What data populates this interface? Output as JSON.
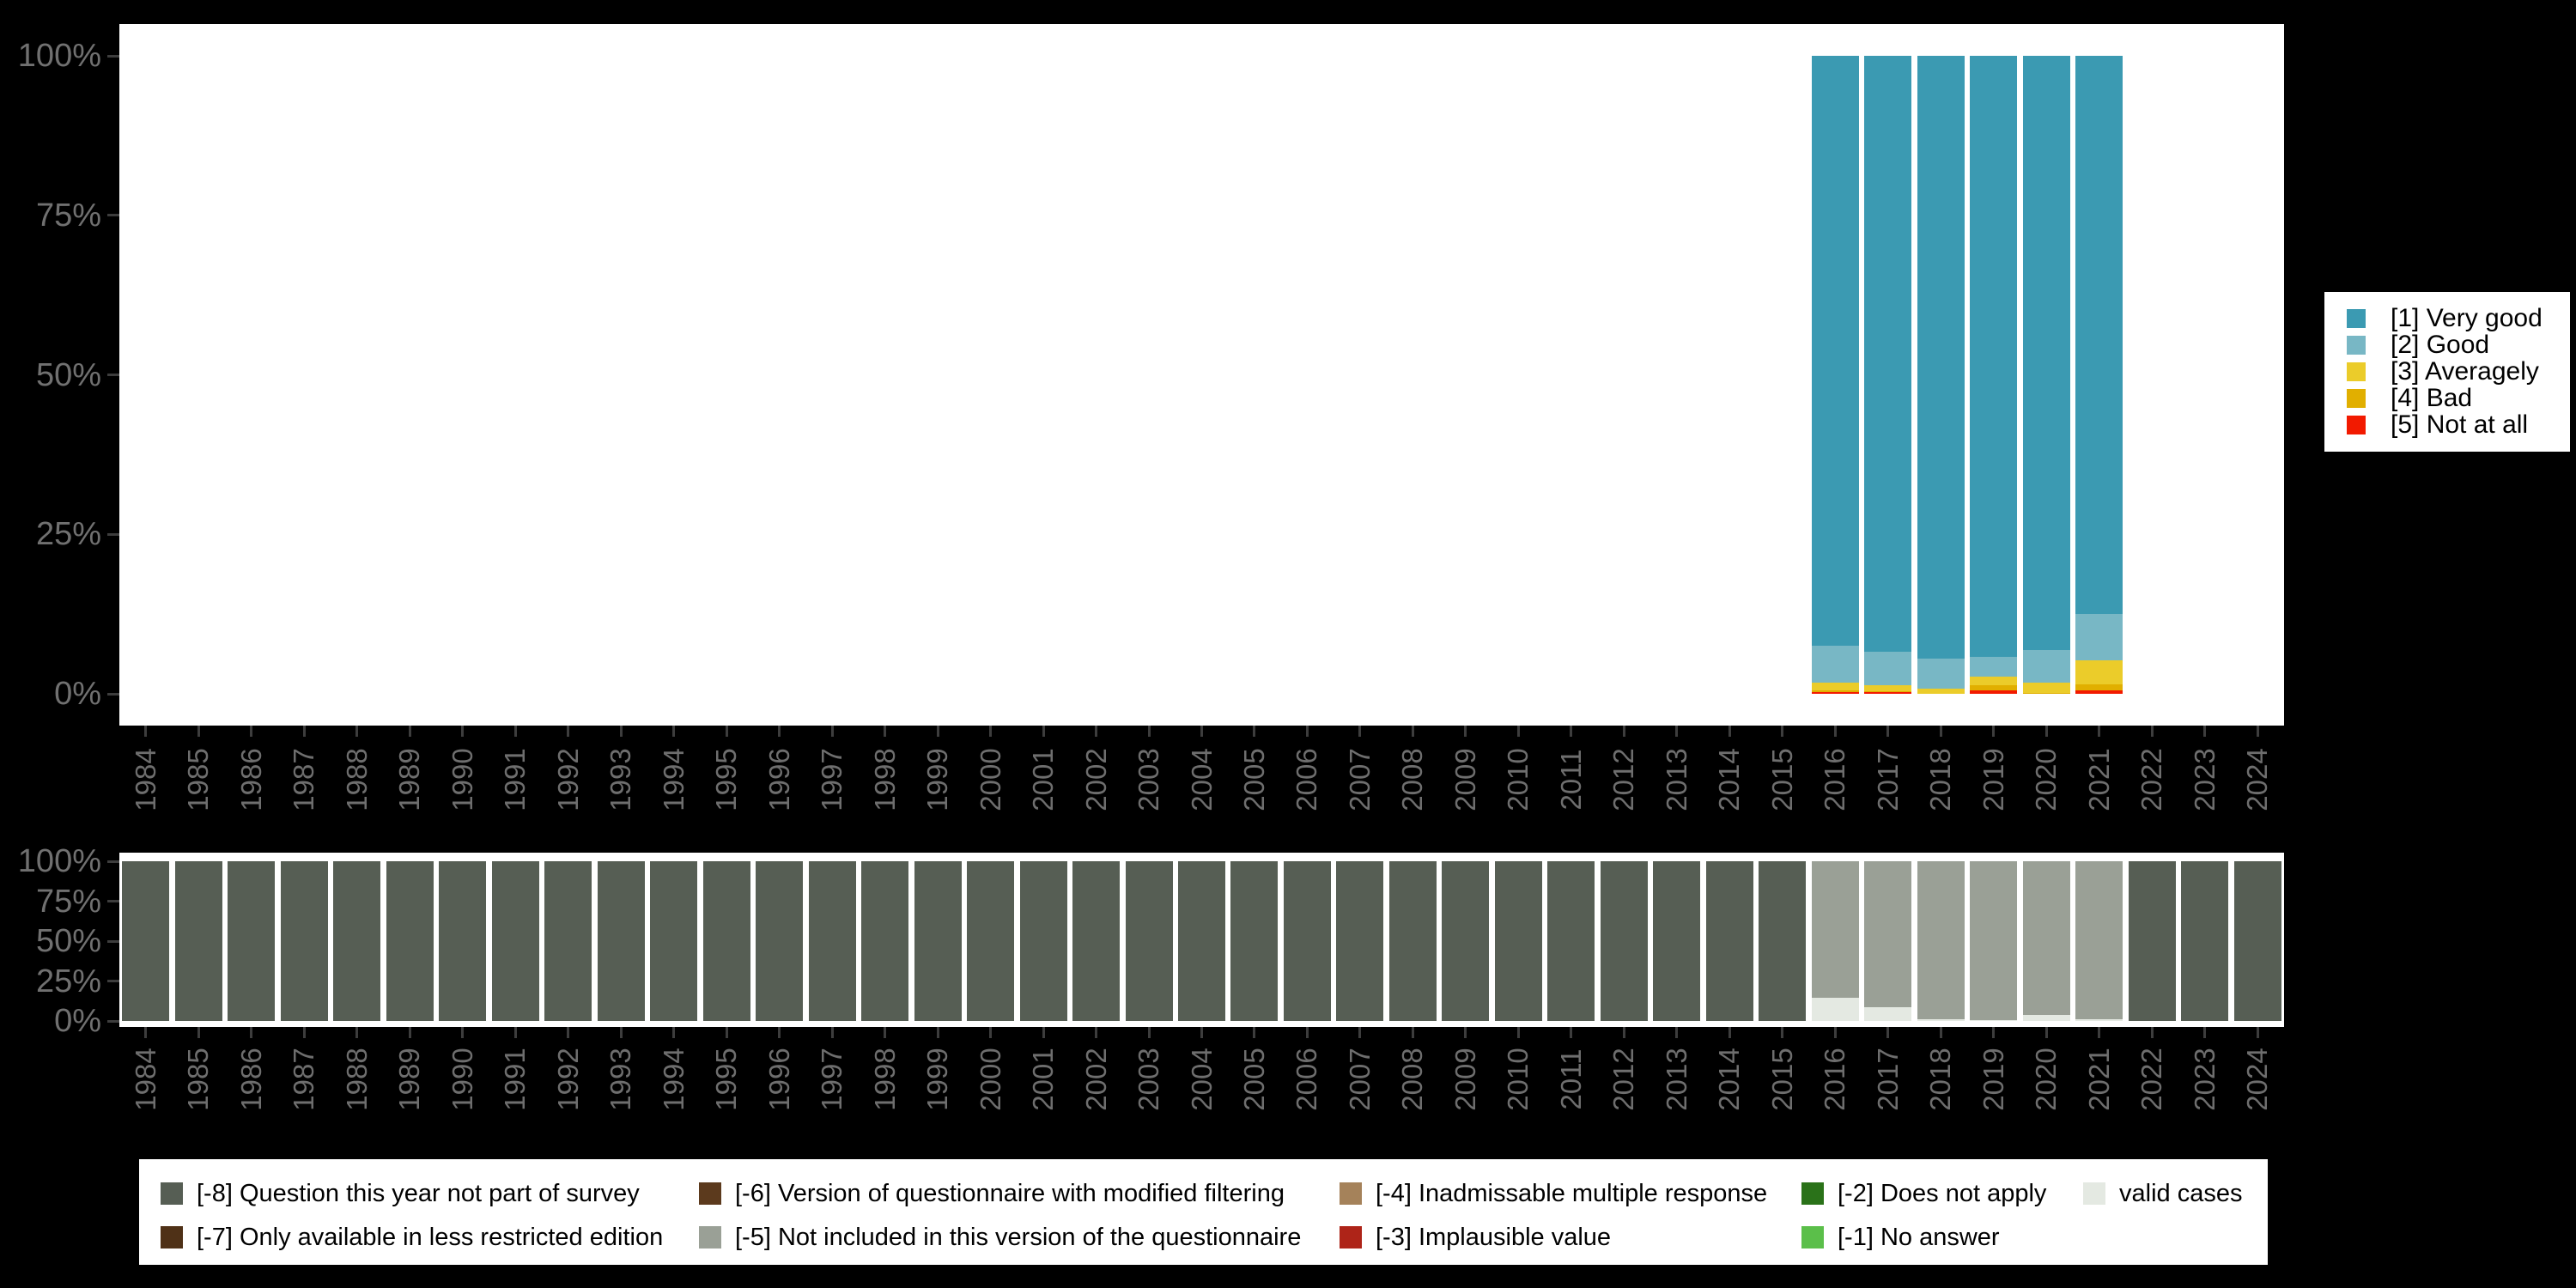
{
  "background_color": "#000000",
  "years": [
    "1984",
    "1985",
    "1986",
    "1987",
    "1988",
    "1989",
    "1990",
    "1991",
    "1992",
    "1993",
    "1994",
    "1995",
    "1996",
    "1997",
    "1998",
    "1999",
    "2000",
    "2001",
    "2002",
    "2003",
    "2004",
    "2005",
    "2006",
    "2007",
    "2008",
    "2009",
    "2010",
    "2011",
    "2012",
    "2013",
    "2014",
    "2015",
    "2016",
    "2017",
    "2018",
    "2019",
    "2020",
    "2021",
    "2022",
    "2023",
    "2024"
  ],
  "chart_data": [
    {
      "type": "bar",
      "stacked": true,
      "percent": true,
      "title": "",
      "xlabel": "",
      "ylabel": "",
      "ylim": [
        0,
        100
      ],
      "yticks": [
        "0%",
        "25%",
        "50%",
        "75%",
        "100%"
      ],
      "grid": false,
      "legend_position": "right",
      "x": [
        "1984",
        "1985",
        "1986",
        "1987",
        "1988",
        "1989",
        "1990",
        "1991",
        "1992",
        "1993",
        "1994",
        "1995",
        "1996",
        "1997",
        "1998",
        "1999",
        "2000",
        "2001",
        "2002",
        "2003",
        "2004",
        "2005",
        "2006",
        "2007",
        "2008",
        "2009",
        "2010",
        "2011",
        "2012",
        "2013",
        "2014",
        "2015",
        "2016",
        "2017",
        "2018",
        "2019",
        "2020",
        "2021",
        "2022",
        "2023",
        "2024"
      ],
      "series": [
        {
          "label": "[1] Very good",
          "color": "#3B9AB2",
          "values": {
            "2016": 92.4,
            "2017": 93.4,
            "2018": 94.5,
            "2019": 94.2,
            "2020": 93.1,
            "2021": 87.5
          }
        },
        {
          "label": "[2] Good",
          "color": "#78B7C5",
          "values": {
            "2016": 5.9,
            "2017": 5.3,
            "2018": 4.7,
            "2019": 3.1,
            "2020": 5.1,
            "2021": 7.2
          }
        },
        {
          "label": "[3] Averagely",
          "color": "#EBCC2A",
          "values": {
            "2016": 1.2,
            "2017": 0.9,
            "2018": 0.8,
            "2019": 1.3,
            "2020": 1.6,
            "2021": 3.8
          }
        },
        {
          "label": "[4] Bad",
          "color": "#E1AF00",
          "values": {
            "2016": 0.2,
            "2017": 0.1,
            "2019": 0.8,
            "2020": 0.2,
            "2021": 1.0
          }
        },
        {
          "label": "[5] Not at all",
          "color": "#F21A00",
          "values": {
            "2016": 0.3,
            "2017": 0.3,
            "2019": 0.6,
            "2021": 0.5
          }
        }
      ]
    },
    {
      "type": "bar",
      "stacked": true,
      "percent": true,
      "title": "",
      "xlabel": "",
      "ylabel": "",
      "ylim": [
        0,
        100
      ],
      "yticks": [
        "0%",
        "25%",
        "50%",
        "75%",
        "100%"
      ],
      "grid": false,
      "legend_position": "bottom",
      "x": [
        "1984",
        "1985",
        "1986",
        "1987",
        "1988",
        "1989",
        "1990",
        "1991",
        "1992",
        "1993",
        "1994",
        "1995",
        "1996",
        "1997",
        "1998",
        "1999",
        "2000",
        "2001",
        "2002",
        "2003",
        "2004",
        "2005",
        "2006",
        "2007",
        "2008",
        "2009",
        "2010",
        "2011",
        "2012",
        "2013",
        "2014",
        "2015",
        "2016",
        "2017",
        "2018",
        "2019",
        "2020",
        "2021",
        "2022",
        "2023",
        "2024"
      ],
      "series": [
        {
          "label": "[-8] Question this year not part of survey",
          "color": "#565E54",
          "values": {
            "1984": 100,
            "1985": 100,
            "1986": 100,
            "1987": 100,
            "1988": 100,
            "1989": 100,
            "1990": 100,
            "1991": 100,
            "1992": 100,
            "1993": 100,
            "1994": 100,
            "1995": 100,
            "1996": 100,
            "1997": 100,
            "1998": 100,
            "1999": 100,
            "2000": 100,
            "2001": 100,
            "2002": 100,
            "2003": 100,
            "2004": 100,
            "2005": 100,
            "2006": 100,
            "2007": 100,
            "2008": 100,
            "2009": 100,
            "2010": 100,
            "2011": 100,
            "2012": 100,
            "2013": 100,
            "2014": 100,
            "2015": 100,
            "2022": 100,
            "2023": 100,
            "2024": 100
          }
        },
        {
          "label": "[-5] Not included in this version of the questionnaire",
          "color": "#9AA096",
          "values": {
            "2016": 85.3,
            "2017": 91.2,
            "2018": 99.0,
            "2019": 99.2,
            "2020": 96.1,
            "2021": 99.1
          }
        },
        {
          "label": "valid cases",
          "color": "#E4E9E2",
          "values": {
            "2016": 14.7,
            "2017": 8.8,
            "2018": 1.0,
            "2019": 0.8,
            "2020": 3.9,
            "2021": 0.9
          }
        }
      ],
      "legend": [
        {
          "label": "[-8] Question this year not part of survey",
          "color": "#565E54"
        },
        {
          "label": "[-7] Only available in less restricted edition",
          "color": "#4F3117"
        },
        {
          "label": "[-6] Version of questionnaire with modified filtering",
          "color": "#5C3A1D"
        },
        {
          "label": "[-5] Not included in this version of the questionnaire",
          "color": "#9AA096"
        },
        {
          "label": "[-4] Inadmissable multiple response",
          "color": "#A5825A"
        },
        {
          "label": "[-3] Implausible value",
          "color": "#AE2418"
        },
        {
          "label": "[-2] Does not apply",
          "color": "#2A7219"
        },
        {
          "label": "[-1] No answer",
          "color": "#5BBF4A"
        },
        {
          "label": "valid cases",
          "color": "#E4E9E2"
        }
      ]
    }
  ]
}
